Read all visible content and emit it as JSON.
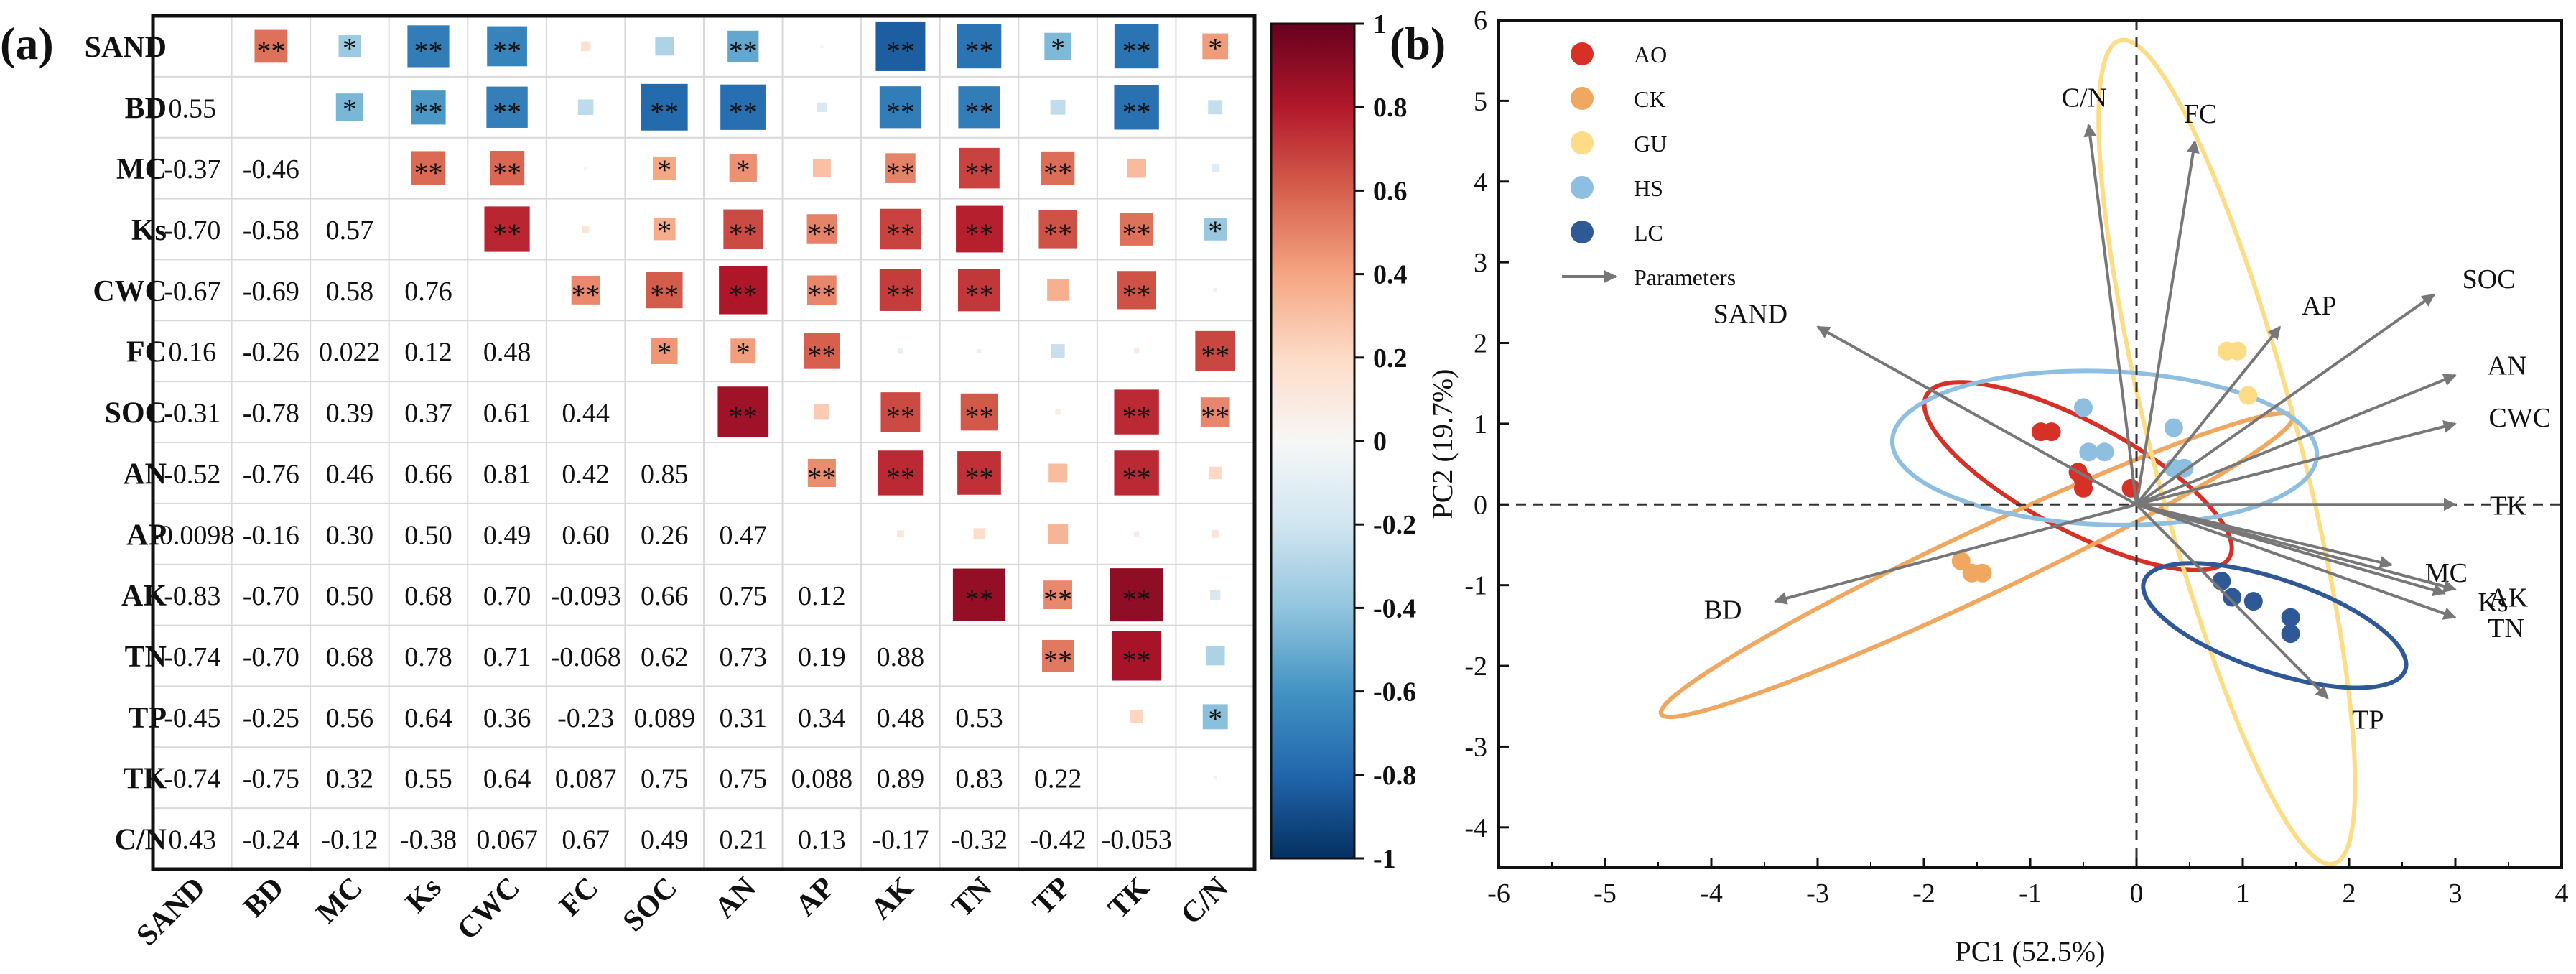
{
  "chart_data": [
    {
      "panel_label": "(a)",
      "type": "heatmap",
      "variables": [
        "SAND",
        "BD",
        "MC",
        "Ks",
        "CWC",
        "FC",
        "SOC",
        "AN",
        "AP",
        "AK",
        "TN",
        "TP",
        "TK",
        "C/N"
      ],
      "lower_text": [
        [
          null,
          null,
          null,
          null,
          null,
          null,
          null,
          null,
          null,
          null,
          null,
          null,
          null,
          null
        ],
        [
          "0.55",
          null,
          null,
          null,
          null,
          null,
          null,
          null,
          null,
          null,
          null,
          null,
          null,
          null
        ],
        [
          "-0.37",
          "-0.46",
          null,
          null,
          null,
          null,
          null,
          null,
          null,
          null,
          null,
          null,
          null,
          null
        ],
        [
          "-0.70",
          "-0.58",
          "0.57",
          null,
          null,
          null,
          null,
          null,
          null,
          null,
          null,
          null,
          null,
          null
        ],
        [
          "-0.67",
          "-0.69",
          "0.58",
          "0.76",
          null,
          null,
          null,
          null,
          null,
          null,
          null,
          null,
          null,
          null
        ],
        [
          "0.16",
          "-0.26",
          "0.022",
          "0.12",
          "0.48",
          null,
          null,
          null,
          null,
          null,
          null,
          null,
          null,
          null
        ],
        [
          "-0.31",
          "-0.78",
          "0.39",
          "0.37",
          "0.61",
          "0.44",
          null,
          null,
          null,
          null,
          null,
          null,
          null,
          null
        ],
        [
          "-0.52",
          "-0.76",
          "0.46",
          "0.66",
          "0.81",
          "0.42",
          "0.85",
          null,
          null,
          null,
          null,
          null,
          null,
          null
        ],
        [
          "-0.0098",
          "-0.16",
          "0.30",
          "0.50",
          "0.49",
          "0.60",
          "0.26",
          "0.47",
          null,
          null,
          null,
          null,
          null,
          null
        ],
        [
          "-0.83",
          "-0.70",
          "0.50",
          "0.68",
          "0.70",
          "-0.093",
          "0.66",
          "0.75",
          "0.12",
          null,
          null,
          null,
          null,
          null
        ],
        [
          "-0.74",
          "-0.70",
          "0.68",
          "0.78",
          "0.71",
          "-0.068",
          "0.62",
          "0.73",
          "0.19",
          "0.88",
          null,
          null,
          null,
          null
        ],
        [
          "-0.45",
          "-0.25",
          "0.56",
          "0.64",
          "0.36",
          "-0.23",
          "0.089",
          "0.31",
          "0.34",
          "0.48",
          "0.53",
          null,
          null,
          null
        ],
        [
          "-0.74",
          "-0.75",
          "0.32",
          "0.55",
          "0.64",
          "0.087",
          "0.75",
          "0.75",
          "0.088",
          "0.89",
          "0.83",
          "0.22",
          null,
          null
        ],
        [
          "0.43",
          "-0.24",
          "-0.12",
          "-0.38",
          "0.067",
          "0.67",
          "0.49",
          "0.21",
          "0.13",
          "-0.17",
          "-0.32",
          "-0.42",
          "-0.053",
          null
        ]
      ],
      "upper_marks": [
        [
          null,
          "**",
          "*",
          "**",
          "**",
          "",
          "",
          "**",
          "",
          "**",
          "**",
          "*",
          "**",
          "*"
        ],
        [
          null,
          null,
          "*",
          "**",
          "**",
          "",
          "**",
          "**",
          "",
          "**",
          "**",
          "",
          "**",
          ""
        ],
        [
          null,
          null,
          null,
          "**",
          "**",
          "",
          "*",
          "*",
          "",
          "**",
          "**",
          "**",
          "",
          ""
        ],
        [
          null,
          null,
          null,
          null,
          "**",
          "",
          "*",
          "**",
          "**",
          "**",
          "**",
          "**",
          "**",
          "*"
        ],
        [
          null,
          null,
          null,
          null,
          null,
          "**",
          "**",
          "**",
          "**",
          "**",
          "**",
          "",
          "**",
          ""
        ],
        [
          null,
          null,
          null,
          null,
          null,
          null,
          "*",
          "*",
          "**",
          "",
          "",
          "",
          "",
          "**"
        ],
        [
          null,
          null,
          null,
          null,
          null,
          null,
          null,
          "**",
          "",
          "**",
          "**",
          "",
          "**",
          "**"
        ],
        [
          null,
          null,
          null,
          null,
          null,
          null,
          null,
          null,
          "**",
          "**",
          "**",
          "",
          "**",
          ""
        ],
        [
          null,
          null,
          null,
          null,
          null,
          null,
          null,
          null,
          null,
          "",
          "",
          "",
          "",
          ""
        ],
        [
          null,
          null,
          null,
          null,
          null,
          null,
          null,
          null,
          null,
          null,
          "**",
          "**",
          "**",
          ""
        ],
        [
          null,
          null,
          null,
          null,
          null,
          null,
          null,
          null,
          null,
          null,
          null,
          "**",
          "**",
          ""
        ],
        [
          null,
          null,
          null,
          null,
          null,
          null,
          null,
          null,
          null,
          null,
          null,
          null,
          "",
          "*"
        ],
        [
          null,
          null,
          null,
          null,
          null,
          null,
          null,
          null,
          null,
          null,
          null,
          null,
          null,
          ""
        ],
        [
          null,
          null,
          null,
          null,
          null,
          null,
          null,
          null,
          null,
          null,
          null,
          null,
          null,
          null
        ]
      ],
      "color_scale": {
        "min": -1,
        "max": 1,
        "ticks": [
          "1",
          "0.8",
          "0.6",
          "0.4",
          "0.2",
          "0",
          "-0.2",
          "-0.4",
          "-0.6",
          "-0.8",
          "-1"
        ],
        "stops": [
          "#053061",
          "#2166ac",
          "#4393c3",
          "#92c5de",
          "#d1e5f0",
          "#f7f7f7",
          "#fddbc7",
          "#f4a582",
          "#d6604d",
          "#b2182b",
          "#67001f"
        ]
      }
    },
    {
      "panel_label": "(b)",
      "type": "scatter",
      "xlabel": "PC1 (52.5%)",
      "ylabel": "PC2 (19.7%)",
      "xlim": [
        -6,
        4
      ],
      "ylim": [
        -4.5,
        6
      ],
      "xticks": [
        "-6",
        "-5",
        "-4",
        "-3",
        "-2",
        "-1",
        "0",
        "1",
        "2",
        "3",
        "4"
      ],
      "yticks": [
        "6",
        "5",
        "4",
        "3",
        "2",
        "1",
        "0",
        "-1",
        "-2",
        "-3",
        "-4"
      ],
      "legend": [
        "AO",
        "CK",
        "GU",
        "HS",
        "LC",
        "Parameters"
      ],
      "groups": [
        {
          "name": "AO",
          "color": "#d73027",
          "points": [
            [
              -0.9,
              0.9
            ],
            [
              -0.8,
              0.9
            ],
            [
              -0.55,
              0.4
            ],
            [
              -0.5,
              0.3
            ],
            [
              -0.5,
              0.2
            ],
            [
              -0.05,
              0.2
            ]
          ],
          "ellipse": {
            "cx": -0.55,
            "cy": 0.35,
            "rx": 1.75,
            "ry": 0.62,
            "angle": -37
          }
        },
        {
          "name": "CK",
          "color": "#f0a860",
          "points": [
            [
              -1.65,
              -0.7
            ],
            [
              -1.55,
              -0.85
            ],
            [
              -1.45,
              -0.85
            ]
          ],
          "ellipse": {
            "cx": -1.5,
            "cy": -0.75,
            "rx": 3.5,
            "ry": 0.38,
            "angle": 32
          }
        },
        {
          "name": "GU",
          "color": "#fcdc84",
          "points": [
            [
              0.85,
              1.9
            ],
            [
              0.95,
              1.9
            ],
            [
              1.05,
              1.35
            ]
          ],
          "ellipse": {
            "cx": 0.85,
            "cy": 0.65,
            "rx": 5.2,
            "ry": 0.7,
            "angle": -79
          }
        },
        {
          "name": "HS",
          "color": "#8fbfe0",
          "points": [
            [
              -0.5,
              1.2
            ],
            [
              -0.45,
              0.65
            ],
            [
              -0.3,
              0.65
            ],
            [
              0.35,
              0.95
            ],
            [
              0.35,
              0.45
            ],
            [
              0.45,
              0.45
            ]
          ],
          "ellipse": {
            "cx": -0.3,
            "cy": 0.7,
            "rx": 2.0,
            "ry": 0.95,
            "angle": -3
          }
        },
        {
          "name": "LC",
          "color": "#2f5996",
          "points": [
            [
              0.8,
              -0.95
            ],
            [
              0.9,
              -1.15
            ],
            [
              1.1,
              -1.2
            ],
            [
              1.45,
              -1.4
            ],
            [
              1.45,
              -1.6
            ]
          ],
          "ellipse": {
            "cx": 1.3,
            "cy": -1.5,
            "rx": 1.35,
            "ry": 0.55,
            "angle": -26
          }
        }
      ],
      "loadings": [
        {
          "name": "C/N",
          "x": -0.45,
          "y": 4.7
        },
        {
          "name": "FC",
          "x": 0.55,
          "y": 4.5
        },
        {
          "name": "SOC",
          "x": 2.8,
          "y": 2.6
        },
        {
          "name": "AP",
          "x": 1.35,
          "y": 2.2
        },
        {
          "name": "AN",
          "x": 3.0,
          "y": 1.6
        },
        {
          "name": "CWC",
          "x": 3.0,
          "y": 1.0
        },
        {
          "name": "TK",
          "x": 3.0,
          "y": 0.0
        },
        {
          "name": "MC",
          "x": 2.4,
          "y": -0.75
        },
        {
          "name": "Ks",
          "x": 2.9,
          "y": -1.1
        },
        {
          "name": "AK",
          "x": 3.0,
          "y": -1.05
        },
        {
          "name": "TN",
          "x": 3.0,
          "y": -1.4
        },
        {
          "name": "TP",
          "x": 1.8,
          "y": -2.4
        },
        {
          "name": "SAND",
          "x": -3.0,
          "y": 2.2
        },
        {
          "name": "BD",
          "x": -3.4,
          "y": -1.2
        }
      ]
    }
  ]
}
